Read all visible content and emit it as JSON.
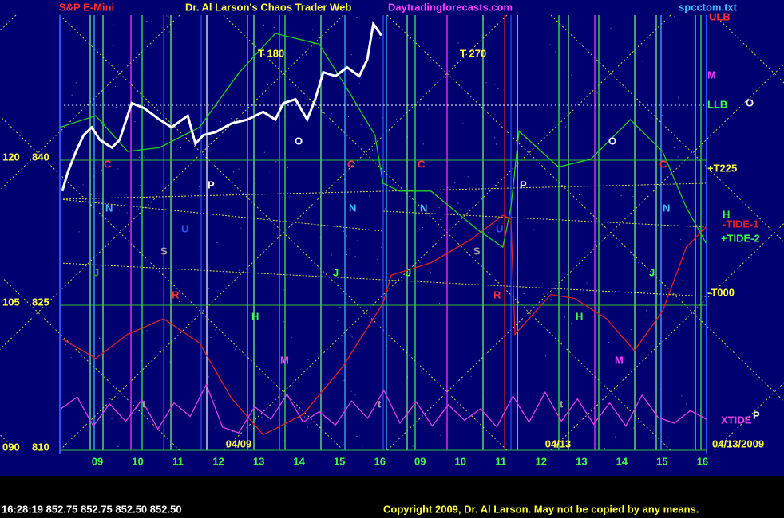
{
  "chart_data": {
    "type": "line",
    "title": "Dr. Al Larson's Chaos Trader Web",
    "site": "Daytradingforecasts.com",
    "file": "spcctom.txt",
    "categories": [
      "09",
      "10",
      "11",
      "12",
      "13",
      "14",
      "15",
      "16",
      "09",
      "10",
      "11",
      "12",
      "13",
      "14",
      "15",
      "16"
    ],
    "date_labels": [
      "04/09",
      "04/13",
      "04/13/2009"
    ],
    "xlim": [
      -0.93,
      15.1
    ],
    "ylim": [
      810,
      855
    ],
    "yticks": [
      810,
      825,
      840
    ],
    "cycle_ticks": [
      "090",
      "105",
      "120"
    ],
    "grid": true,
    "series": [
      {
        "name": "S&P E-Mini",
        "color": "#ffffff",
        "x": [
          -0.87,
          -0.73,
          -0.53,
          -0.34,
          -0.14,
          0.06,
          0.36,
          0.55,
          0.85,
          1.15,
          1.54,
          1.84,
          2.24,
          2.43,
          2.63,
          2.93,
          3.32,
          3.72,
          4.11,
          4.41,
          4.61,
          4.91,
          5.2,
          5.4,
          5.6,
          5.9,
          6.19,
          6.49,
          6.69,
          6.84,
          7.04
        ],
        "values": [
          836.8,
          838.8,
          840.9,
          842.6,
          843.4,
          842.1,
          841.3,
          842.1,
          845.9,
          845.4,
          844.2,
          843.4,
          844.6,
          841.7,
          842.6,
          842.9,
          843.8,
          844.2,
          845.0,
          844.2,
          845.9,
          846.3,
          844.2,
          846.3,
          849.1,
          848.7,
          849.6,
          848.7,
          850.4,
          854.1,
          852.9
        ]
      },
      {
        "name": "-TIDE-1",
        "color": "#e02020",
        "x": [
          -0.87,
          -0.04,
          0.75,
          1.64,
          2.53,
          3.32,
          4.11,
          5.1,
          6.09,
          7.08,
          7.28,
          8.27,
          9.26,
          10.05,
          10.25,
          10.35,
          11.24,
          11.83,
          12.62,
          13.31,
          14.01,
          14.6,
          15.09
        ],
        "values": [
          821.5,
          819.5,
          822.0,
          823.6,
          821.1,
          815.4,
          811.6,
          813.7,
          818.7,
          825.2,
          828.1,
          829.4,
          831.8,
          834.3,
          833.9,
          822.0,
          826.1,
          825.7,
          823.6,
          820.3,
          824.4,
          831.0,
          833.1
        ]
      },
      {
        "name": "+TIDE-2",
        "color": "#20d020",
        "x": [
          -0.93,
          -0.04,
          0.75,
          1.54,
          2.53,
          3.52,
          4.41,
          5.5,
          6.29,
          6.88,
          7.08,
          7.48,
          8.27,
          9.46,
          10.05,
          10.25,
          10.45,
          11.43,
          12.23,
          13.21,
          14.01,
          14.6,
          15.09
        ],
        "values": [
          843.4,
          844.6,
          840.9,
          841.3,
          843.4,
          849.1,
          853.1,
          852.0,
          846.7,
          842.6,
          837.6,
          836.8,
          836.8,
          832.7,
          831.0,
          835.1,
          843.0,
          839.3,
          840.1,
          844.2,
          840.9,
          835.1,
          831.4
        ]
      },
      {
        "name": "XTIDE",
        "color": "#e040e0",
        "x": [
          -0.9,
          -0.5,
          -0.1,
          0.3,
          0.7,
          1.1,
          1.5,
          1.9,
          2.3,
          2.7,
          3.1,
          3.5,
          3.9,
          4.3,
          4.7,
          5.1,
          5.5,
          5.9,
          6.3,
          6.7,
          7.1,
          7.5,
          7.9,
          8.3,
          8.7,
          9.1,
          9.5,
          9.9,
          10.3,
          10.7,
          11.1,
          11.5,
          11.9,
          12.3,
          12.7,
          13.1,
          13.5,
          13.9,
          14.3,
          14.7,
          15.1
        ],
        "values": [
          814.3,
          815.5,
          812.5,
          814.8,
          813.0,
          815.2,
          812.2,
          814.9,
          813.5,
          816.8,
          812.4,
          811.8,
          814.5,
          813.2,
          815.8,
          812.9,
          814.0,
          812.6,
          815.1,
          813.3,
          816.2,
          812.8,
          815.0,
          812.5,
          814.7,
          813.1,
          814.3,
          812.4,
          815.6,
          812.9,
          816.0,
          813.0,
          815.3,
          812.7,
          814.9,
          812.5,
          815.7,
          813.4,
          812.8,
          814.1,
          813.2
        ]
      }
    ],
    "right_labels": [
      "ULB",
      "M",
      "LLB",
      "O",
      "+T225",
      "H",
      "+TIDE-2",
      "-T000",
      "P"
    ],
    "plot_labels": [
      "C",
      "C",
      "C",
      "C",
      "N",
      "N",
      "N",
      "N",
      "U",
      "U",
      "S",
      "S",
      "R",
      "R",
      "H",
      "H",
      "M",
      "M",
      "J",
      "J",
      "J",
      "J",
      "P",
      "P",
      "O",
      "O",
      "T 180",
      "T 270",
      "t",
      "t",
      "t"
    ],
    "status": "16:28:19  852.75 852.75 852.50 852.50",
    "copyright": "Copyright 2009, Dr. Al Larson. May not be copied by any means."
  }
}
